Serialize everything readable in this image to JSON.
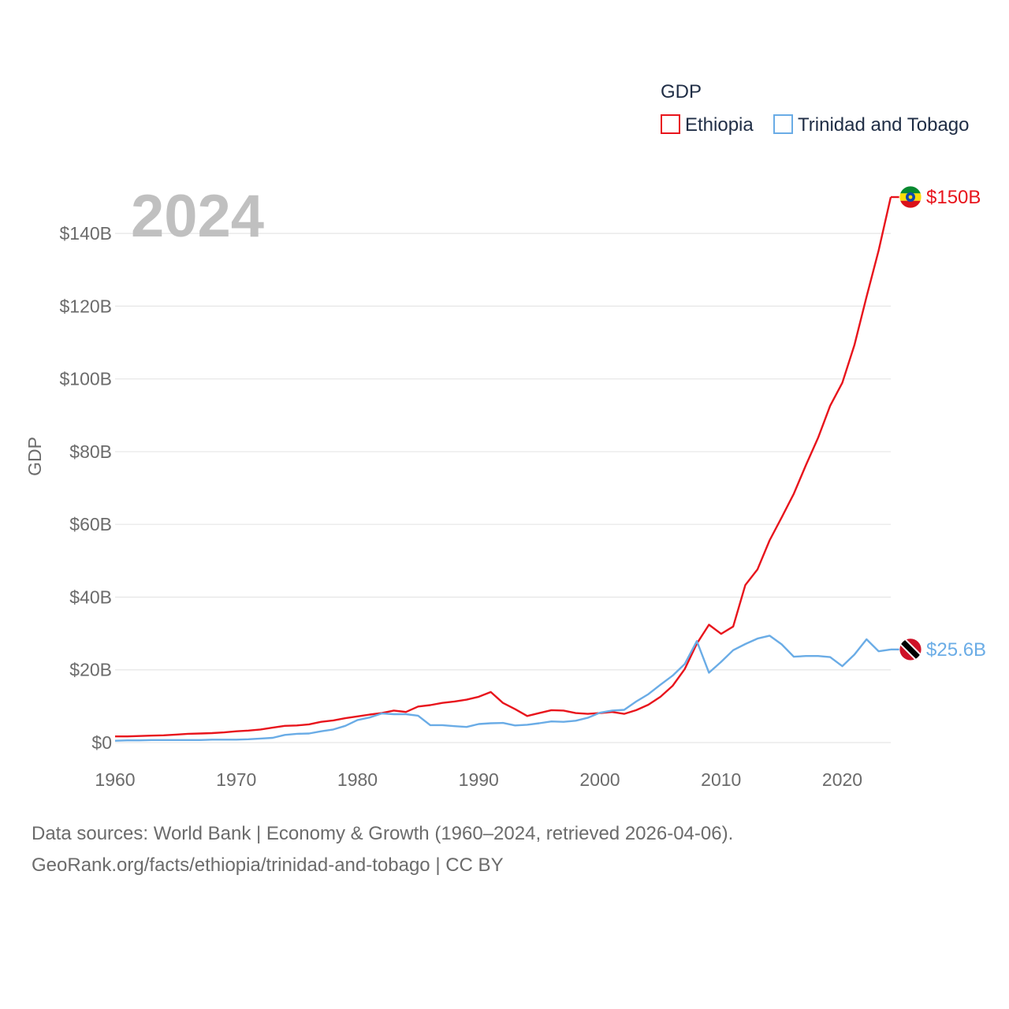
{
  "chart_data": {
    "type": "line",
    "legend_title": "GDP",
    "ylabel": "GDP",
    "year_label": "2024",
    "ylim": [
      0,
      150
    ],
    "xlim": [
      1960,
      2024
    ],
    "y_ticks": [
      {
        "value": 0,
        "label": "$0"
      },
      {
        "value": 20,
        "label": "$20B"
      },
      {
        "value": 40,
        "label": "$40B"
      },
      {
        "value": 60,
        "label": "$60B"
      },
      {
        "value": 80,
        "label": "$80B"
      },
      {
        "value": 100,
        "label": "$100B"
      },
      {
        "value": 120,
        "label": "$120B"
      },
      {
        "value": 140,
        "label": "$140B"
      }
    ],
    "x_ticks": [
      {
        "value": 1960,
        "label": "1960"
      },
      {
        "value": 1970,
        "label": "1970"
      },
      {
        "value": 1980,
        "label": "1980"
      },
      {
        "value": 1990,
        "label": "1990"
      },
      {
        "value": 2000,
        "label": "2000"
      },
      {
        "value": 2010,
        "label": "2010"
      },
      {
        "value": 2020,
        "label": "2020"
      }
    ],
    "series": [
      {
        "name": "Ethiopia",
        "color": "#e8141c",
        "end_label": "$150B",
        "flag_icon": "ethiopia-flag-icon",
        "points": [
          [
            1960,
            1.7
          ],
          [
            1961,
            1.7
          ],
          [
            1962,
            1.8
          ],
          [
            1963,
            1.9
          ],
          [
            1964,
            2.0
          ],
          [
            1965,
            2.2
          ],
          [
            1966,
            2.4
          ],
          [
            1967,
            2.5
          ],
          [
            1968,
            2.6
          ],
          [
            1969,
            2.8
          ],
          [
            1970,
            3.1
          ],
          [
            1971,
            3.3
          ],
          [
            1972,
            3.6
          ],
          [
            1973,
            4.1
          ],
          [
            1974,
            4.6
          ],
          [
            1975,
            4.7
          ],
          [
            1976,
            5.0
          ],
          [
            1977,
            5.7
          ],
          [
            1978,
            6.1
          ],
          [
            1979,
            6.7
          ],
          [
            1980,
            7.2
          ],
          [
            1981,
            7.7
          ],
          [
            1982,
            8.1
          ],
          [
            1983,
            8.8
          ],
          [
            1984,
            8.4
          ],
          [
            1985,
            9.9
          ],
          [
            1986,
            10.3
          ],
          [
            1987,
            10.9
          ],
          [
            1988,
            11.3
          ],
          [
            1989,
            11.8
          ],
          [
            1990,
            12.6
          ],
          [
            1991,
            13.9
          ],
          [
            1992,
            10.9
          ],
          [
            1993,
            9.2
          ],
          [
            1994,
            7.3
          ],
          [
            1995,
            8.1
          ],
          [
            1996,
            8.9
          ],
          [
            1997,
            8.8
          ],
          [
            1998,
            8.1
          ],
          [
            1999,
            7.9
          ],
          [
            2000,
            8.1
          ],
          [
            2001,
            8.4
          ],
          [
            2002,
            7.9
          ],
          [
            2003,
            8.9
          ],
          [
            2004,
            10.4
          ],
          [
            2005,
            12.6
          ],
          [
            2006,
            15.6
          ],
          [
            2007,
            20.2
          ],
          [
            2008,
            27.2
          ],
          [
            2009,
            32.4
          ],
          [
            2010,
            29.9
          ],
          [
            2011,
            31.9
          ],
          [
            2012,
            43.3
          ],
          [
            2013,
            47.6
          ],
          [
            2014,
            55.6
          ],
          [
            2015,
            61.9
          ],
          [
            2016,
            68.4
          ],
          [
            2017,
            76.3
          ],
          [
            2018,
            83.8
          ],
          [
            2019,
            92.6
          ],
          [
            2020,
            98.9
          ],
          [
            2021,
            109.3
          ],
          [
            2022,
            122.6
          ],
          [
            2023,
            135.3
          ],
          [
            2024,
            150.0
          ]
        ]
      },
      {
        "name": "Trinidad and Tobago",
        "color": "#6aace6",
        "end_label": "$25.6B",
        "flag_icon": "trinidad-and-tobago-flag-icon",
        "points": [
          [
            1960,
            0.5
          ],
          [
            1961,
            0.6
          ],
          [
            1962,
            0.6
          ],
          [
            1963,
            0.7
          ],
          [
            1964,
            0.7
          ],
          [
            1965,
            0.7
          ],
          [
            1966,
            0.7
          ],
          [
            1967,
            0.7
          ],
          [
            1968,
            0.8
          ],
          [
            1969,
            0.8
          ],
          [
            1970,
            0.8
          ],
          [
            1971,
            0.9
          ],
          [
            1972,
            1.1
          ],
          [
            1973,
            1.3
          ],
          [
            1974,
            2.1
          ],
          [
            1975,
            2.4
          ],
          [
            1976,
            2.5
          ],
          [
            1977,
            3.1
          ],
          [
            1978,
            3.6
          ],
          [
            1979,
            4.6
          ],
          [
            1980,
            6.2
          ],
          [
            1981,
            6.9
          ],
          [
            1982,
            8.0
          ],
          [
            1983,
            7.8
          ],
          [
            1984,
            7.8
          ],
          [
            1985,
            7.4
          ],
          [
            1986,
            4.8
          ],
          [
            1987,
            4.8
          ],
          [
            1988,
            4.5
          ],
          [
            1989,
            4.3
          ],
          [
            1990,
            5.1
          ],
          [
            1991,
            5.3
          ],
          [
            1992,
            5.4
          ],
          [
            1993,
            4.7
          ],
          [
            1994,
            4.9
          ],
          [
            1995,
            5.3
          ],
          [
            1996,
            5.8
          ],
          [
            1997,
            5.7
          ],
          [
            1998,
            6.0
          ],
          [
            1999,
            6.8
          ],
          [
            2000,
            8.2
          ],
          [
            2001,
            8.8
          ],
          [
            2002,
            9.0
          ],
          [
            2003,
            11.3
          ],
          [
            2004,
            13.3
          ],
          [
            2005,
            15.9
          ],
          [
            2006,
            18.4
          ],
          [
            2007,
            21.6
          ],
          [
            2008,
            27.9
          ],
          [
            2009,
            19.2
          ],
          [
            2010,
            22.2
          ],
          [
            2011,
            25.4
          ],
          [
            2012,
            27.1
          ],
          [
            2013,
            28.6
          ],
          [
            2014,
            29.4
          ],
          [
            2015,
            27.0
          ],
          [
            2016,
            23.6
          ],
          [
            2017,
            23.8
          ],
          [
            2018,
            23.8
          ],
          [
            2019,
            23.5
          ],
          [
            2020,
            21.0
          ],
          [
            2021,
            24.2
          ],
          [
            2022,
            28.4
          ],
          [
            2023,
            25.1
          ],
          [
            2024,
            25.6
          ]
        ]
      }
    ]
  },
  "footer": {
    "line1": "Data sources: World Bank | Economy & Growth (1960–2024, retrieved 2026-04-06).",
    "line2": "GeoRank.org/facts/ethiopia/trinidad-and-tobago | CC BY"
  }
}
